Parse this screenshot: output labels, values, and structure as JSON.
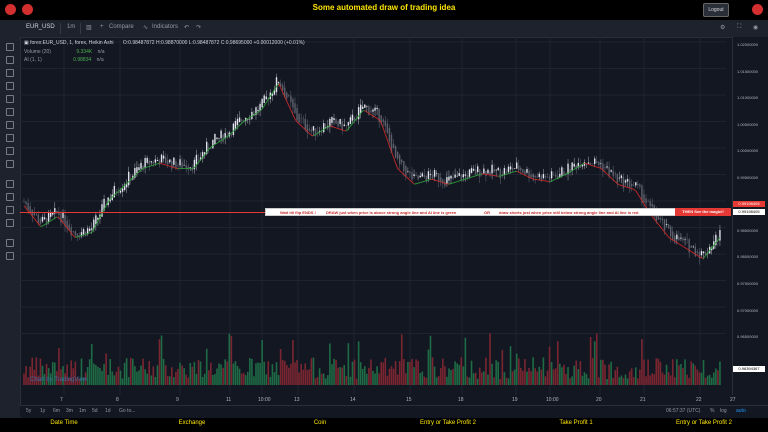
{
  "header": {
    "title": "Some automated draw of trading idea",
    "logout_label": "Logout"
  },
  "toolbar": {
    "symbol": "EUR_USD",
    "interval": "1m",
    "compare_label": "Compare",
    "indicators_label": "Indicators"
  },
  "legend": {
    "main": "forex:EUR_USD, 1, forex, Heikin Ashi",
    "ohlc": "O:0.98487872  H:0.98870000  L:0.98487872  C:0.98695000  +0.00012000 (+0.01%)",
    "volume_label": "Volume (20)",
    "volume_val": "9.334K",
    "volume_na": "n/a",
    "ai_label": "AI (1, 1)",
    "ai_val": "0.98834",
    "ai_na": "n/a"
  },
  "price_axis": {
    "labels": [
      "1.02000000",
      "1.01500000",
      "1.01000000",
      "1.00500000",
      "1.00000000",
      "0.99500000",
      "0.99000000",
      "0.98500000",
      "0.98000000",
      "0.97500000",
      "0.97000000",
      "0.96500000"
    ],
    "marker_red": "0.99198405",
    "marker_white": "0.99198405",
    "marker_last": "0.96394367"
  },
  "time_axis": {
    "labels": [
      "7",
      "8",
      "9",
      "11",
      "10:00",
      "13",
      "14",
      "15",
      "18",
      "19",
      "10:00",
      "20",
      "21",
      "22",
      "27"
    ]
  },
  "annotation": {
    "part1": "Wait till flip ENDS !",
    "part2": "DRAW just when price is above strong angle line and AI line is green",
    "part3": "OR",
    "part4": "draw shorts just when price still below strong angle line and AI line is red",
    "button": "THEN See the magic!!"
  },
  "bottombar": {
    "ranges": [
      "5y",
      "1y",
      "6m",
      "3m",
      "1m",
      "5d",
      "1d"
    ],
    "goto": "Go to...",
    "clock": "06:57:37 (UTC)",
    "pct": "%",
    "log": "log",
    "auto": "auto"
  },
  "watermark": "Chart by TradingView",
  "footer": {
    "items": [
      "Date Time",
      "Exchange",
      "Coin",
      "Entry or Take Profit 2",
      "Take Profit 1",
      "Entry or Take Profit 2"
    ]
  },
  "chart_data": {
    "type": "candlestick-heikin-ashi",
    "symbol": "EUR_USD",
    "interval": "1",
    "approx_close_path": [
      0.992,
      0.988,
      0.99,
      0.986,
      0.987,
      0.993,
      0.996,
      0.999,
      1.0,
      0.999,
      0.999,
      1.003,
      1.005,
      1.008,
      1.01,
      1.015,
      1.008,
      1.005,
      1.007,
      1.006,
      1.01,
      1.008,
      0.999,
      0.996,
      0.997,
      0.996,
      0.997,
      0.998,
      0.9975,
      0.9985,
      0.997,
      0.9965,
      0.998,
      1.0,
      0.999,
      0.996,
      0.995,
      0.99,
      0.986,
      0.984,
      0.982,
      0.986
    ]
  }
}
